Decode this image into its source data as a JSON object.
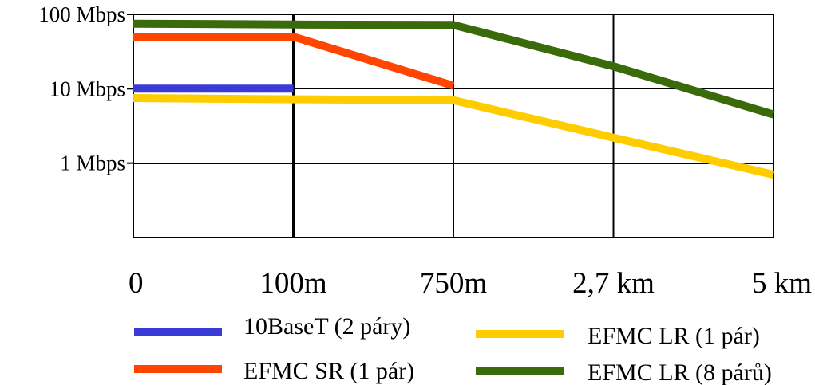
{
  "chart_data": {
    "type": "line",
    "title": "",
    "xlabel": "",
    "ylabel": "",
    "y_scale": "log",
    "x_categories": [
      "0",
      "100m",
      "750m",
      "2,7 km",
      "5 km"
    ],
    "y_ticks": [
      {
        "value": 100,
        "label": "100 Mbps"
      },
      {
        "value": 10,
        "label": "10 Mbps"
      },
      {
        "value": 1,
        "label": "1 Mbps"
      }
    ],
    "ylim": [
      0.1,
      100
    ],
    "grid": true,
    "legend_position": "bottom",
    "series": [
      {
        "name": "10BaseT (2 páry)",
        "color": "#3a3ad6",
        "points": [
          {
            "x": "0",
            "y": 10
          },
          {
            "x": "100m",
            "y": 10
          }
        ]
      },
      {
        "name": "EFMC SR (1 pár)",
        "color": "#ff4500",
        "points": [
          {
            "x": "0",
            "y": 50
          },
          {
            "x": "100m",
            "y": 50
          },
          {
            "x": "750m",
            "y": 11
          }
        ]
      },
      {
        "name": "EFMC LR (1 pár)",
        "color": "#ffcc00",
        "points": [
          {
            "x": "0",
            "y": 7.5
          },
          {
            "x": "100m",
            "y": 7.2
          },
          {
            "x": "750m",
            "y": 7
          },
          {
            "x": "2,7 km",
            "y": 2.2
          },
          {
            "x": "5 km",
            "y": 0.7
          }
        ]
      },
      {
        "name": "EFMC LR (8 párů)",
        "color": "#3a6b0a",
        "points": [
          {
            "x": "0",
            "y": 75
          },
          {
            "x": "100m",
            "y": 73
          },
          {
            "x": "750m",
            "y": 72
          },
          {
            "x": "2,7 km",
            "y": 20
          },
          {
            "x": "5 km",
            "y": 4.5
          }
        ]
      }
    ]
  }
}
